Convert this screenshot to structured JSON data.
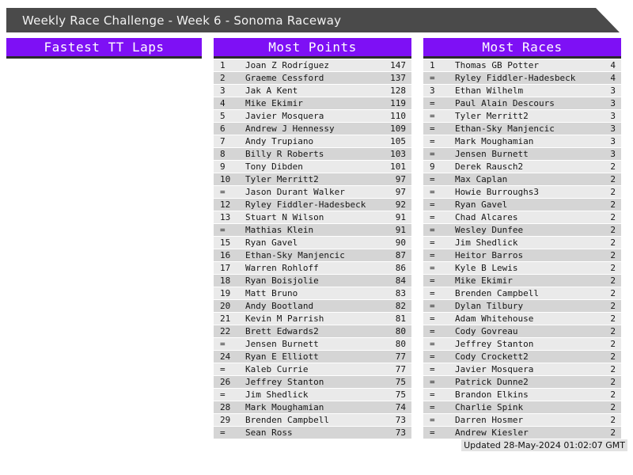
{
  "header": {
    "title": "Weekly Race Challenge - Week 6 - Sonoma Raceway"
  },
  "footer": {
    "updated": "Updated 28-May-2024 01:02:07 GMT"
  },
  "colors": {
    "accent_purple": "#7e10f5",
    "title_bar_gray": "#4a4a4a",
    "header_underline": "#2b2b2b",
    "row_light": "#eaeaea",
    "row_dark": "#d5d5d5",
    "footer_bg": "#e2e2e2"
  },
  "leaderboards": [
    {
      "title": "Fastest TT Laps",
      "rows": []
    },
    {
      "title": "Most Points",
      "rows": [
        {
          "rank": "1",
          "name": "Joan Z Rodríguez",
          "value": "147"
        },
        {
          "rank": "2",
          "name": "Graeme Cessford",
          "value": "137"
        },
        {
          "rank": "3",
          "name": "Jak A Kent",
          "value": "128"
        },
        {
          "rank": "4",
          "name": "Mike Ekimir",
          "value": "119"
        },
        {
          "rank": "5",
          "name": "Javier Mosquera",
          "value": "110"
        },
        {
          "rank": "6",
          "name": "Andrew J Hennessy",
          "value": "109"
        },
        {
          "rank": "7",
          "name": "Andy Trupiano",
          "value": "105"
        },
        {
          "rank": "8",
          "name": "Billy R Roberts",
          "value": "103"
        },
        {
          "rank": "9",
          "name": "Tony Dibden",
          "value": "101"
        },
        {
          "rank": "10",
          "name": "Tyler Merritt2",
          "value": "97"
        },
        {
          "rank": "=",
          "name": "Jason Durant Walker",
          "value": "97"
        },
        {
          "rank": "12",
          "name": "Ryley Fiddler-Hadesbeck",
          "value": "92"
        },
        {
          "rank": "13",
          "name": "Stuart N Wilson",
          "value": "91"
        },
        {
          "rank": "=",
          "name": "Mathias Klein",
          "value": "91"
        },
        {
          "rank": "15",
          "name": "Ryan Gavel",
          "value": "90"
        },
        {
          "rank": "16",
          "name": "Ethan-Sky Manjencic",
          "value": "87"
        },
        {
          "rank": "17",
          "name": "Warren Rohloff",
          "value": "86"
        },
        {
          "rank": "18",
          "name": "Ryan Boisjolie",
          "value": "84"
        },
        {
          "rank": "19",
          "name": "Matt Bruno",
          "value": "83"
        },
        {
          "rank": "20",
          "name": "Andy Bootland",
          "value": "82"
        },
        {
          "rank": "21",
          "name": "Kevin M Parrish",
          "value": "81"
        },
        {
          "rank": "22",
          "name": "Brett Edwards2",
          "value": "80"
        },
        {
          "rank": "=",
          "name": "Jensen Burnett",
          "value": "80"
        },
        {
          "rank": "24",
          "name": "Ryan E Elliott",
          "value": "77"
        },
        {
          "rank": "=",
          "name": "Kaleb Currie",
          "value": "77"
        },
        {
          "rank": "26",
          "name": "Jeffrey Stanton",
          "value": "75"
        },
        {
          "rank": "=",
          "name": "Jim Shedlick",
          "value": "75"
        },
        {
          "rank": "28",
          "name": "Mark Moughamian",
          "value": "74"
        },
        {
          "rank": "29",
          "name": "Brenden Campbell",
          "value": "73"
        },
        {
          "rank": "=",
          "name": "Sean Ross",
          "value": "73"
        }
      ]
    },
    {
      "title": "Most Races",
      "rows": [
        {
          "rank": "1",
          "name": "Thomas GB Potter",
          "value": "4"
        },
        {
          "rank": "=",
          "name": "Ryley Fiddler-Hadesbeck",
          "value": "4"
        },
        {
          "rank": "3",
          "name": "Ethan Wilhelm",
          "value": "3"
        },
        {
          "rank": "=",
          "name": "Paul Alain Descours",
          "value": "3"
        },
        {
          "rank": "=",
          "name": "Tyler Merritt2",
          "value": "3"
        },
        {
          "rank": "=",
          "name": "Ethan-Sky Manjencic",
          "value": "3"
        },
        {
          "rank": "=",
          "name": "Mark Moughamian",
          "value": "3"
        },
        {
          "rank": "=",
          "name": "Jensen Burnett",
          "value": "3"
        },
        {
          "rank": "9",
          "name": "Derek Rausch2",
          "value": "2"
        },
        {
          "rank": "=",
          "name": "Max Caplan",
          "value": "2"
        },
        {
          "rank": "=",
          "name": "Howie Burroughs3",
          "value": "2"
        },
        {
          "rank": "=",
          "name": "Ryan Gavel",
          "value": "2"
        },
        {
          "rank": "=",
          "name": "Chad Alcares",
          "value": "2"
        },
        {
          "rank": "=",
          "name": "Wesley Dunfee",
          "value": "2"
        },
        {
          "rank": "=",
          "name": "Jim Shedlick",
          "value": "2"
        },
        {
          "rank": "=",
          "name": "Heitor Barros",
          "value": "2"
        },
        {
          "rank": "=",
          "name": "Kyle B Lewis",
          "value": "2"
        },
        {
          "rank": "=",
          "name": "Mike Ekimir",
          "value": "2"
        },
        {
          "rank": "=",
          "name": "Brenden Campbell",
          "value": "2"
        },
        {
          "rank": "=",
          "name": "Dylan Tilbury",
          "value": "2"
        },
        {
          "rank": "=",
          "name": "Adam Whitehouse",
          "value": "2"
        },
        {
          "rank": "=",
          "name": "Cody Govreau",
          "value": "2"
        },
        {
          "rank": "=",
          "name": "Jeffrey Stanton",
          "value": "2"
        },
        {
          "rank": "=",
          "name": "Cody Crockett2",
          "value": "2"
        },
        {
          "rank": "=",
          "name": "Javier Mosquera",
          "value": "2"
        },
        {
          "rank": "=",
          "name": "Patrick Dunne2",
          "value": "2"
        },
        {
          "rank": "=",
          "name": "Brandon Elkins",
          "value": "2"
        },
        {
          "rank": "=",
          "name": "Charlie Spink",
          "value": "2"
        },
        {
          "rank": "=",
          "name": "Darren Hosmer",
          "value": "2"
        },
        {
          "rank": "=",
          "name": "Andrew Kiesler",
          "value": "2"
        }
      ]
    }
  ]
}
